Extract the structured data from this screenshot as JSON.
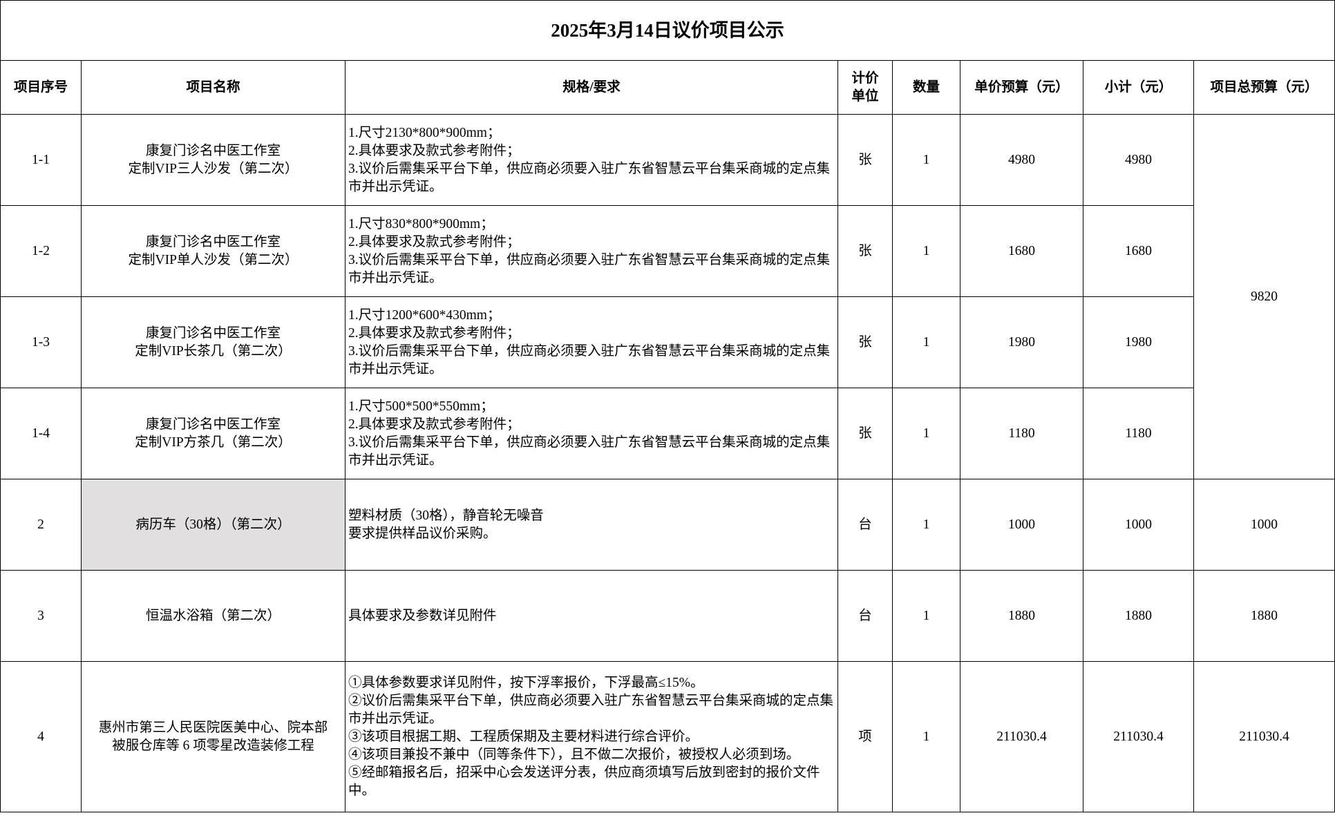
{
  "title": "2025年3月14日议价项目公示",
  "headers": [
    "项目序号",
    "项目名称",
    "规格/要求",
    "计价单位",
    "数量",
    "单价预算（元）",
    "小计（元）",
    "项目总预算（元）"
  ],
  "unit_header_lines": [
    "计价",
    "单位"
  ],
  "rows": [
    {
      "no": "1-1",
      "name": [
        "康复门诊名中医工作室",
        "定制VIP三人沙发（第二次）"
      ],
      "spec": [
        "1.尺寸2130*800*900mm；",
        "2.具体要求及款式参考附件；",
        "3.议价后需集采平台下单，供应商必须要入驻广东省智慧云平台集采商城的定点集市并出示凭证。"
      ],
      "unit": "张",
      "qty": "1",
      "price": "4980",
      "subtotal": "4980"
    },
    {
      "no": "1-2",
      "name": [
        "康复门诊名中医工作室",
        "定制VIP单人沙发（第二次）"
      ],
      "spec": [
        "1.尺寸830*800*900mm；",
        "2.具体要求及款式参考附件；",
        "3.议价后需集采平台下单，供应商必须要入驻广东省智慧云平台集采商城的定点集市并出示凭证。"
      ],
      "unit": "张",
      "qty": "1",
      "price": "1680",
      "subtotal": "1680"
    },
    {
      "no": "1-3",
      "name": [
        "康复门诊名中医工作室",
        "定制VIP长茶几（第二次）"
      ],
      "spec": [
        "1.尺寸1200*600*430mm；",
        "2.具体要求及款式参考附件；",
        "3.议价后需集采平台下单，供应商必须要入驻广东省智慧云平台集采商城的定点集市并出示凭证。"
      ],
      "unit": "张",
      "qty": "1",
      "price": "1980",
      "subtotal": "1980"
    },
    {
      "no": "1-4",
      "name": [
        "康复门诊名中医工作室",
        "定制VIP方茶几（第二次）"
      ],
      "spec": [
        "1.尺寸500*500*550mm；",
        "2.具体要求及款式参考附件；",
        "3.议价后需集采平台下单，供应商必须要入驻广东省智慧云平台集采商城的定点集市并出示凭证。"
      ],
      "unit": "张",
      "qty": "1",
      "price": "1180",
      "subtotal": "1180"
    },
    {
      "no": "2",
      "name": [
        "病历车（30格）（第二次）"
      ],
      "spec": [
        "塑料材质（30格），静音轮无噪音",
        "要求提供样品议价采购。"
      ],
      "unit": "台",
      "qty": "1",
      "price": "1000",
      "subtotal": "1000",
      "total": "1000"
    },
    {
      "no": "3",
      "name": [
        "恒温水浴箱（第二次）"
      ],
      "spec": [
        "具体要求及参数详见附件"
      ],
      "unit": "台",
      "qty": "1",
      "price": "1880",
      "subtotal": "1880",
      "total": "1880"
    },
    {
      "no": "4",
      "name": [
        "惠州市第三人民医院医美中心、院本部",
        "被服仓库等 6 项零星改造装修工程"
      ],
      "spec": [
        "①具体参数要求详见附件，按下浮率报价，下浮最高≤15%。",
        "②议价后需集采平台下单，供应商必须要入驻广东省智慧云平台集采商城的定点集市并出示凭证。",
        "③该项目根据工期、工程质保期及主要材料进行综合评价。",
        "④该项目兼投不兼中（同等条件下），且不做二次报价，被授权人必须到场。",
        "⑤经邮箱报名后，招采中心会发送评分表，供应商须填写后放到密封的报价文件中。"
      ],
      "unit": "项",
      "qty": "1",
      "price": "211030.4",
      "subtotal": "211030.4",
      "total": "211030.4"
    }
  ],
  "group1_total": "9820",
  "highlight_color": "#e1dfe0"
}
